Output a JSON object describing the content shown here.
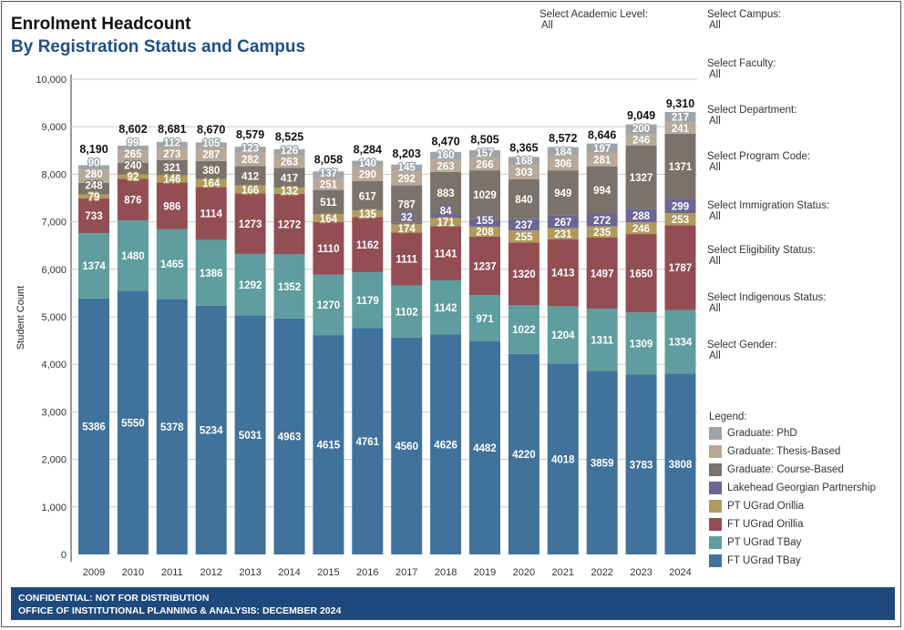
{
  "header": {
    "title": "Enrolment Headcount",
    "subtitle": "By Registration Status and Campus"
  },
  "filters": [
    {
      "label": "Select Academic Level:",
      "value": "All"
    },
    {
      "label": "Select Campus:",
      "value": "All"
    },
    {
      "label": "Select Faculty:",
      "value": "All"
    },
    {
      "label": "Select Department:",
      "value": "All"
    },
    {
      "label": "Select Program Code:",
      "value": "All"
    },
    {
      "label": "Select Immigration Status:",
      "value": "All"
    },
    {
      "label": "Select Eligibility Status:",
      "value": "All"
    },
    {
      "label": "Select Indigenous Status:",
      "value": "All"
    },
    {
      "label": "Select Gender:",
      "value": "All"
    }
  ],
  "legend_title": "Legend:",
  "footer": {
    "line1": "CONFIDENTIAL: NOT FOR DISTRIBUTION",
    "line2": "OFFICE OF INSTITUTIONAL PLANNING & ANALYSIS: DECEMBER 2024"
  },
  "chart_data": {
    "type": "bar",
    "stacked": true,
    "ylabel": "Student Count",
    "ylim": [
      0,
      10000
    ],
    "yticks": [
      "0",
      "1,000",
      "2,000",
      "3,000",
      "4,000",
      "5,000",
      "6,000",
      "7,000",
      "8,000",
      "9,000",
      "10,000"
    ],
    "grid": true,
    "legend_placement": "right",
    "categories": [
      "2009",
      "2010",
      "2011",
      "2012",
      "2013",
      "2014",
      "2015",
      "2016",
      "2017",
      "2018",
      "2019",
      "2020",
      "2021",
      "2022",
      "2023",
      "2024"
    ],
    "totals": [
      "8,190",
      "8,602",
      "8,681",
      "8,670",
      "8,579",
      "8,525",
      "8,058",
      "8,284",
      "8,203",
      "8,470",
      "8,505",
      "8,365",
      "8,572",
      "8,646",
      "9,049",
      "9,310"
    ],
    "series": [
      {
        "name": "FT UGrad TBay",
        "color": "#40729b",
        "values": [
          5386,
          5550,
          5378,
          5234,
          5031,
          4963,
          4615,
          4761,
          4560,
          4626,
          4482,
          4220,
          4018,
          3859,
          3783,
          3808
        ]
      },
      {
        "name": "PT UGrad TBay",
        "color": "#5f9d9e",
        "values": [
          1374,
          1480,
          1465,
          1386,
          1292,
          1352,
          1270,
          1179,
          1102,
          1142,
          971,
          1022,
          1204,
          1311,
          1309,
          1334
        ]
      },
      {
        "name": "FT UGrad Orillia",
        "color": "#934e54",
        "values": [
          733,
          876,
          986,
          1114,
          1273,
          1272,
          1110,
          1162,
          1111,
          1141,
          1237,
          1320,
          1413,
          1497,
          1650,
          1787
        ]
      },
      {
        "name": "PT UGrad Orillia",
        "color": "#b09b5c",
        "values": [
          79,
          92,
          146,
          164,
          166,
          132,
          164,
          135,
          174,
          171,
          208,
          255,
          231,
          235,
          246,
          253
        ]
      },
      {
        "name": "Lakehead Georgian Partnership",
        "color": "#6b6794",
        "values": [
          0,
          0,
          0,
          0,
          0,
          0,
          0,
          0,
          32,
          84,
          155,
          237,
          267,
          272,
          288,
          299
        ]
      },
      {
        "name": "Graduate: Course-Based",
        "color": "#7b736b",
        "values": [
          248,
          240,
          321,
          380,
          412,
          417,
          511,
          617,
          787,
          883,
          1029,
          840,
          949,
          994,
          1327,
          1371
        ]
      },
      {
        "name": "Graduate: Thesis-Based",
        "color": "#b8a898",
        "values": [
          280,
          265,
          273,
          287,
          282,
          263,
          251,
          290,
          292,
          263,
          266,
          303,
          306,
          281,
          246,
          241
        ]
      },
      {
        "name": "Graduate: PhD",
        "color": "#9ea4a7",
        "values": [
          90,
          99,
          112,
          105,
          123,
          126,
          137,
          140,
          145,
          160,
          157,
          168,
          184,
          197,
          200,
          217
        ]
      }
    ]
  }
}
